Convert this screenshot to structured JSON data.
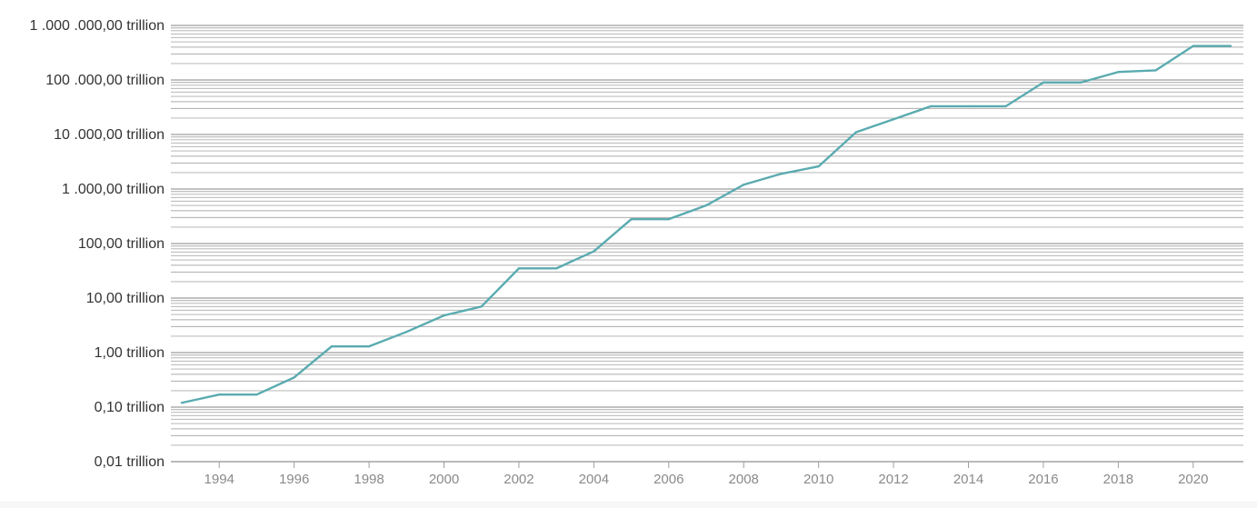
{
  "chart_data": {
    "type": "line",
    "title": "",
    "xlabel": "",
    "ylabel": "",
    "y_scale": "log",
    "y_unit": "trillion",
    "ylim": [
      0.01,
      1000000
    ],
    "xlim": [
      1993,
      2021
    ],
    "grid": "horizontal log-scale gridlines (major and minor)",
    "legend": "none",
    "y_tick_labels": [
      {
        "value": 1000000,
        "label": "1 .000 .000,00 trillion"
      },
      {
        "value": 100000,
        "label": "100 .000,00 trillion"
      },
      {
        "value": 10000,
        "label": "10 .000,00 trillion"
      },
      {
        "value": 1000,
        "label": "1 .000,00 trillion"
      },
      {
        "value": 100,
        "label": "100,00 trillion"
      },
      {
        "value": 10,
        "label": "10,00 trillion"
      },
      {
        "value": 1,
        "label": "1,00 trillion"
      },
      {
        "value": 0.1,
        "label": "0,10 trillion"
      },
      {
        "value": 0.01,
        "label": "0,01 trillion"
      }
    ],
    "x_ticks": [
      1994,
      1996,
      1998,
      2000,
      2002,
      2004,
      2006,
      2008,
      2010,
      2012,
      2014,
      2016,
      2018,
      2020
    ],
    "series": [
      {
        "color": "#5aabb0",
        "points": [
          {
            "x": 1993,
            "y": 0.12
          },
          {
            "x": 1994,
            "y": 0.17
          },
          {
            "x": 1995,
            "y": 0.17
          },
          {
            "x": 1996,
            "y": 0.35
          },
          {
            "x": 1997,
            "y": 1.3
          },
          {
            "x": 1998,
            "y": 1.3
          },
          {
            "x": 1999,
            "y": 2.4
          },
          {
            "x": 2000,
            "y": 4.8
          },
          {
            "x": 2001,
            "y": 7
          },
          {
            "x": 2002,
            "y": 35
          },
          {
            "x": 2003,
            "y": 35
          },
          {
            "x": 2004,
            "y": 72
          },
          {
            "x": 2005,
            "y": 280
          },
          {
            "x": 2006,
            "y": 280
          },
          {
            "x": 2007,
            "y": 500
          },
          {
            "x": 2008,
            "y": 1200
          },
          {
            "x": 2009,
            "y": 1900
          },
          {
            "x": 2010,
            "y": 2600
          },
          {
            "x": 2011,
            "y": 11000
          },
          {
            "x": 2012,
            "y": 19000
          },
          {
            "x": 2013,
            "y": 33000
          },
          {
            "x": 2014,
            "y": 33000
          },
          {
            "x": 2015,
            "y": 33000
          },
          {
            "x": 2016,
            "y": 90000
          },
          {
            "x": 2017,
            "y": 90000
          },
          {
            "x": 2018,
            "y": 140000
          },
          {
            "x": 2019,
            "y": 150000
          },
          {
            "x": 2020,
            "y": 420000
          },
          {
            "x": 2021,
            "y": 420000
          }
        ]
      }
    ]
  },
  "colors": {
    "line": "#5aabb0",
    "gridline": "#9e9e9e",
    "y_label": "#333333",
    "x_label": "#8a8a8a"
  }
}
